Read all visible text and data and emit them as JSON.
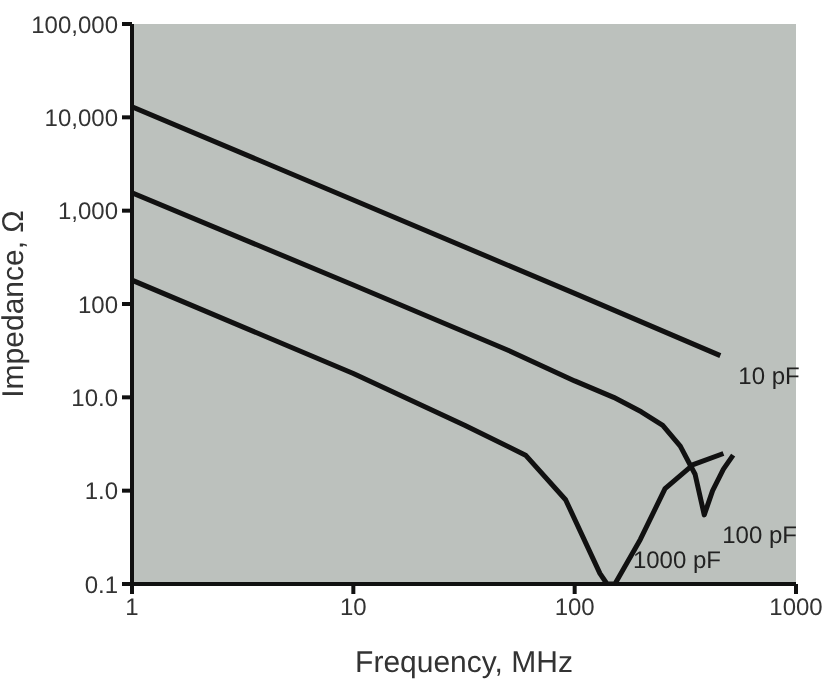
{
  "chart_data": {
    "type": "line",
    "xlabel": "Frequency, MHz",
    "ylabel": "Impedance, Ω",
    "log": "xy",
    "grid": false,
    "legend": false,
    "marker": "none",
    "line_style": "solid",
    "xlim": [
      1,
      1000
    ],
    "xticks": [
      1,
      10,
      100,
      1000
    ],
    "ylim": [
      0.1,
      100000
    ],
    "yticks": [
      {
        "value": 0.1,
        "label": "0.1"
      },
      {
        "value": 1,
        "label": "1.0"
      },
      {
        "value": 10,
        "label": "10.0"
      },
      {
        "value": 100,
        "label": "100"
      },
      {
        "value": 1000,
        "label": "1,000"
      },
      {
        "value": 10000,
        "label": "10,000"
      },
      {
        "value": 100000,
        "label": "100,000"
      }
    ],
    "series": [
      {
        "name": "10 pF",
        "color": "#111111",
        "x": [
          1,
          10,
          100,
          455
        ],
        "values": [
          13000,
          1300,
          130,
          28
        ]
      },
      {
        "name": "100 pF",
        "color": "#111111",
        "x": [
          1,
          10,
          50,
          100,
          150,
          200,
          250,
          300,
          350,
          385,
          420,
          470,
          520
        ],
        "values": [
          1550,
          160,
          32,
          15,
          10,
          7,
          5,
          3,
          1.5,
          0.55,
          1,
          1.7,
          2.4
        ]
      },
      {
        "name": "1000 pF",
        "color": "#111111",
        "x": [
          1,
          10,
          32,
          60,
          91,
          130,
          140,
          152,
          198,
          256,
          343,
          470
        ],
        "values": [
          180,
          18,
          5,
          2.4,
          0.8,
          0.13,
          0.1,
          0.1,
          0.3,
          1.05,
          1.9,
          2.5
        ]
      }
    ]
  }
}
